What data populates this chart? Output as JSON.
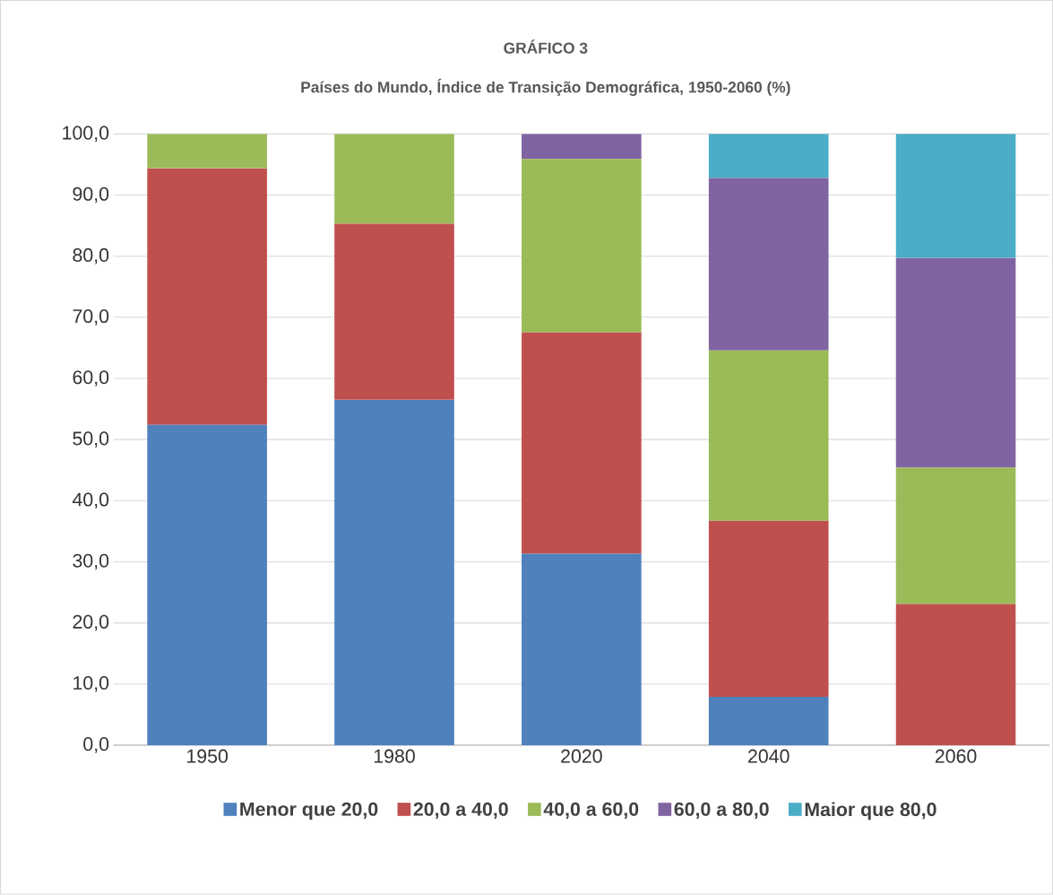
{
  "chart_data": {
    "type": "bar",
    "title": "GRÁFICO 3",
    "subtitle": "Países do Mundo, Índice de Transição Demográfica, 1950-2060 (%)",
    "categories": [
      "1950",
      "1980",
      "2020",
      "2040",
      "2060"
    ],
    "series": [
      {
        "name": "Menor que 20,0",
        "color": "#4f81bd",
        "values": [
          52.4,
          56.5,
          31.3,
          7.9,
          0
        ]
      },
      {
        "name": "20,0 a 40,0",
        "color": "#c0504d",
        "values": [
          42.0,
          28.8,
          36.2,
          28.8,
          23.1
        ]
      },
      {
        "name": "40,0 a 60,0",
        "color": "#9bbb59",
        "values": [
          5.6,
          14.7,
          28.4,
          27.9,
          22.3
        ]
      },
      {
        "name": "60,0 a 80,0",
        "color": "#8064a2",
        "values": [
          0,
          0,
          4.1,
          28.2,
          34.3
        ]
      },
      {
        "name": "Maior que 80,0",
        "color": "#4bacc6",
        "values": [
          0,
          0,
          0,
          7.2,
          20.3
        ]
      }
    ],
    "stacked": true,
    "ylim": [
      0,
      100
    ],
    "yticks": [
      {
        "value": 0,
        "label": "0,0"
      },
      {
        "value": 10,
        "label": "10,0"
      },
      {
        "value": 20,
        "label": "20,0"
      },
      {
        "value": 30,
        "label": "30,0"
      },
      {
        "value": 40,
        "label": "40,0"
      },
      {
        "value": 50,
        "label": "50,0"
      },
      {
        "value": 60,
        "label": "60,0"
      },
      {
        "value": 70,
        "label": "70,0"
      },
      {
        "value": 80,
        "label": "80,0"
      },
      {
        "value": 90,
        "label": "90,0"
      },
      {
        "value": 100,
        "label": "100,0"
      }
    ],
    "grid": "y",
    "legend": "bottom"
  }
}
